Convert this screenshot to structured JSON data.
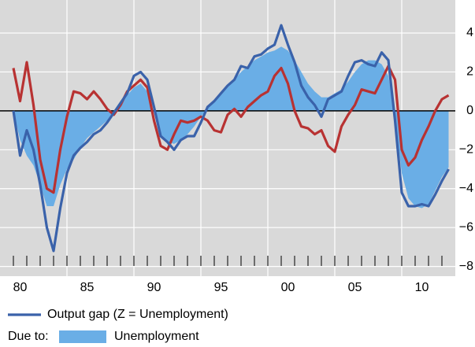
{
  "chart_data": {
    "type": "line",
    "x": [
      1980.0,
      1980.5,
      1981.0,
      1981.5,
      1982.0,
      1982.5,
      1983.0,
      1983.5,
      1984.0,
      1984.5,
      1985.0,
      1985.5,
      1986.0,
      1986.5,
      1987.0,
      1987.5,
      1988.0,
      1988.5,
      1989.0,
      1989.5,
      1990.0,
      1990.5,
      1991.0,
      1991.5,
      1992.0,
      1992.5,
      1993.0,
      1993.5,
      1994.0,
      1994.5,
      1995.0,
      1995.5,
      1996.0,
      1996.5,
      1997.0,
      1997.5,
      1998.0,
      1998.5,
      1999.0,
      1999.5,
      2000.0,
      2000.5,
      2001.0,
      2001.5,
      2002.0,
      2002.5,
      2003.0,
      2003.5,
      2004.0,
      2004.5,
      2005.0,
      2005.5,
      2006.0,
      2006.5,
      2007.0,
      2007.5,
      2008.0,
      2008.5,
      2009.0,
      2009.5,
      2010.0,
      2010.5,
      2011.0,
      2011.5,
      2012.0,
      2012.5
    ],
    "series": [
      {
        "name": "Unemployment",
        "style": "area",
        "color": "#6aaee6",
        "values": [
          0,
          -1.5,
          -2.3,
          -2.8,
          -3.8,
          -4.9,
          -4.9,
          -3.8,
          -3.0,
          -2.5,
          -1.9,
          -1.4,
          -1.1,
          -0.8,
          -0.5,
          -0.1,
          0.4,
          0.8,
          1.2,
          1.4,
          1.0,
          -0.1,
          -1.2,
          -1.6,
          -1.7,
          -1.5,
          -1.2,
          -0.8,
          -0.3,
          0.1,
          0.5,
          0.9,
          1.2,
          1.6,
          2.0,
          2.3,
          2.6,
          2.8,
          3.0,
          3.1,
          3.3,
          3.1,
          2.6,
          2.0,
          1.4,
          1.0,
          0.7,
          0.7,
          0.9,
          1.1,
          1.5,
          2.0,
          2.4,
          2.6,
          2.6,
          2.4,
          1.8,
          -0.3,
          -3.2,
          -4.5,
          -4.9,
          -5.0,
          -4.8,
          -4.1,
          -3.4,
          -2.9
        ]
      },
      {
        "style": "line",
        "color": "#b83232",
        "values": [
          2.2,
          0.5,
          2.5,
          0.3,
          -2.5,
          -4.0,
          -4.2,
          -2.0,
          -0.3,
          1.0,
          0.9,
          0.6,
          1.0,
          0.6,
          0.1,
          -0.2,
          0.3,
          1.0,
          1.3,
          1.6,
          1.2,
          -0.5,
          -1.8,
          -2.0,
          -1.2,
          -0.5,
          -0.6,
          -0.5,
          -0.3,
          -0.5,
          -1.0,
          -1.1,
          -0.2,
          0.1,
          -0.3,
          0.2,
          0.5,
          0.8,
          1.0,
          1.8,
          2.2,
          1.4,
          0.0,
          -0.8,
          -0.9,
          -1.2,
          -1.0,
          -1.8,
          -2.1,
          -0.8,
          -0.2,
          0.3,
          1.1,
          1.0,
          0.9,
          1.6,
          2.3,
          1.6,
          -2.0,
          -2.8,
          -2.4,
          -1.5,
          -0.8,
          0.0,
          0.6,
          0.8
        ]
      },
      {
        "name": "Output gap (Z = Unemployment)",
        "style": "line",
        "color": "#3a62aa",
        "values": [
          0,
          -2.3,
          -1.0,
          -2.0,
          -3.8,
          -6.0,
          -7.2,
          -5.0,
          -3.2,
          -2.3,
          -1.9,
          -1.6,
          -1.2,
          -1.0,
          -0.6,
          -0.1,
          0.4,
          0.9,
          1.8,
          2.0,
          1.6,
          0.2,
          -1.3,
          -1.6,
          -2.0,
          -1.5,
          -1.3,
          -1.3,
          -0.6,
          0.2,
          0.5,
          0.9,
          1.3,
          1.6,
          2.3,
          2.2,
          2.8,
          2.9,
          3.2,
          3.4,
          4.4,
          3.4,
          2.5,
          1.3,
          0.7,
          0.3,
          -0.3,
          0.6,
          0.8,
          1.0,
          1.8,
          2.5,
          2.6,
          2.4,
          2.3,
          3.0,
          2.6,
          -0.5,
          -4.2,
          -4.9,
          -4.9,
          -4.8,
          -4.9,
          -4.3,
          -3.6,
          -3.0
        ]
      }
    ],
    "legend_prefix": "Due to:",
    "xlim": [
      1979,
      2013
    ],
    "xticks": [
      {
        "value": 1980.5,
        "label": "80"
      },
      {
        "value": 1985.5,
        "label": "85"
      },
      {
        "value": 1990.5,
        "label": "90"
      },
      {
        "value": 1995.5,
        "label": "95"
      },
      {
        "value": 2000.5,
        "label": "00"
      },
      {
        "value": 2005.5,
        "label": "05"
      },
      {
        "value": 2010.5,
        "label": "10"
      }
    ],
    "xgrid": [
      1984,
      1989,
      1994,
      1999,
      2004,
      2009
    ],
    "minor_xticks": [
      1980,
      1981,
      1982,
      1983,
      1984,
      1985,
      1986,
      1987,
      1988,
      1989,
      1990,
      1991,
      1992,
      1993,
      1994,
      1995,
      1996,
      1997,
      1998,
      1999,
      2000,
      2001,
      2002,
      2003,
      2004,
      2005,
      2006,
      2007,
      2008,
      2009,
      2010,
      2011,
      2012
    ],
    "ylim": [
      -8.5,
      5.7
    ],
    "yticks": [
      4,
      2,
      0,
      {
        "value": -2,
        "label": "−2"
      },
      {
        "value": -4,
        "label": "−4"
      },
      {
        "value": -6,
        "label": "−6"
      },
      {
        "value": -8,
        "label": "−8"
      }
    ],
    "baseline": 0,
    "grid": true,
    "background": "#d9d9d9"
  }
}
